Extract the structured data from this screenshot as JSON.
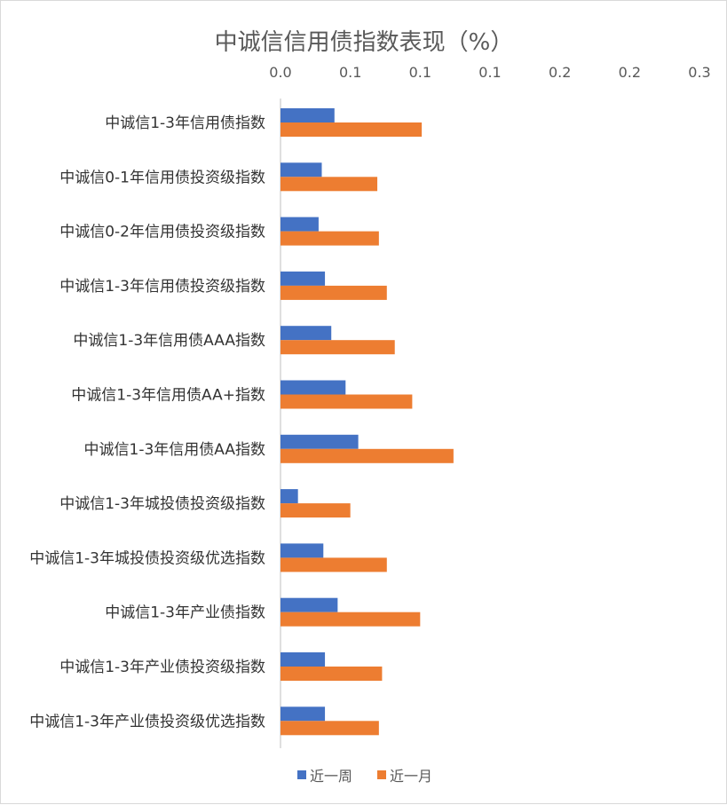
{
  "chart_data": {
    "type": "bar",
    "orientation": "horizontal",
    "title": "中诚信信用债指数表现（%）",
    "x_axis_position": "top",
    "x_tick_labels": [
      "0.0",
      "0.1",
      "0.1",
      "0.1",
      "0.2",
      "0.2",
      "0.3"
    ],
    "xlim": [
      0,
      0.264
    ],
    "categories": [
      "中诚信1-3年信用债指数",
      "中诚信0-1年信用债投资级指数",
      "中诚信0-2年信用债投资级指数",
      "中诚信1-3年信用债投资级指数",
      "中诚信1-3年信用债AAA指数",
      "中诚信1-3年信用债AA+指数",
      "中诚信1-3年信用债AA指数",
      "中诚信1-3年城投债投资级指数",
      "中诚信1-3年城投债投资级优选指数",
      "中诚信1-3年产业债指数",
      "中诚信1-3年产业债投资级指数",
      "中诚信1-3年产业债投资级优选指数"
    ],
    "series": [
      {
        "name": "近一周",
        "color": "#4472C4",
        "values": [
          0.034,
          0.026,
          0.024,
          0.028,
          0.032,
          0.041,
          0.049,
          0.011,
          0.027,
          0.036,
          0.028,
          0.028
        ]
      },
      {
        "name": "近一月",
        "color": "#ED7D31",
        "values": [
          0.089,
          0.061,
          0.062,
          0.067,
          0.072,
          0.083,
          0.109,
          0.044,
          0.067,
          0.088,
          0.064,
          0.062
        ]
      }
    ],
    "grid": false,
    "legend_position": "bottom"
  }
}
